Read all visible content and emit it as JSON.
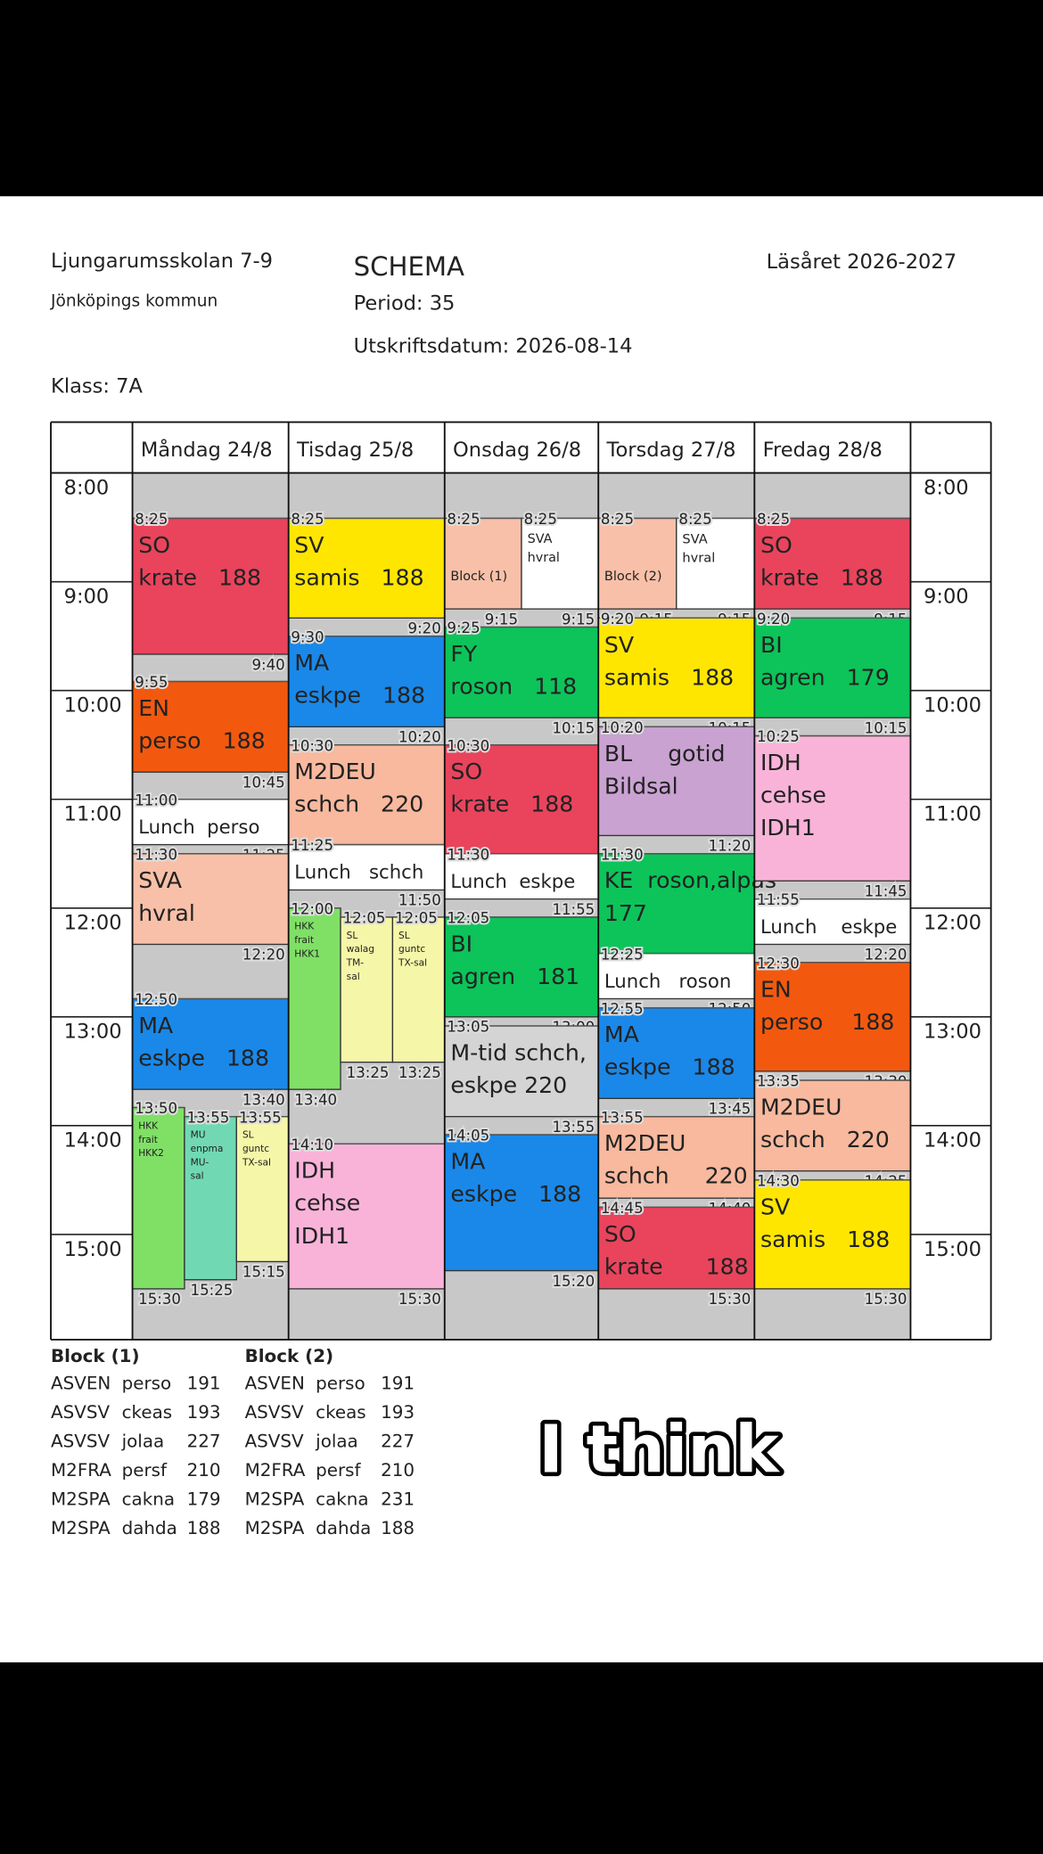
{
  "header": {
    "school": "Ljungarumsskolan 7-9",
    "municipality": "Jönköpings kommun",
    "title": "SCHEMA",
    "period": "Period: 35",
    "print_date": "Utskriftsdatum: 2026-08-14",
    "school_year": "Läsåret 2026-2027",
    "class": "Klass: 7A"
  },
  "hours": [
    "8:00",
    "9:00",
    "10:00",
    "11:00",
    "12:00",
    "13:00",
    "14:00",
    "15:00"
  ],
  "days": [
    {
      "name": "Måndag 24/8",
      "lessons": [
        {
          "start": "8:25",
          "end": "9:40",
          "lines": [
            "SO",
            "krate   188"
          ],
          "color": "#e9445c"
        },
        {
          "start": "9:55",
          "end": "10:45",
          "lines": [
            "EN",
            "perso   188"
          ],
          "color": "#f2590f"
        },
        {
          "start": "11:00",
          "end": "11:25",
          "lines": [
            "Lunch  perso"
          ],
          "color": "#ffffff"
        },
        {
          "start": "11:30",
          "end": "12:20",
          "lines": [
            "SVA",
            "hvral"
          ],
          "color": "#f8c0a8"
        },
        {
          "start": "12:50",
          "end": "13:40",
          "lines": [
            "MA",
            "eskpe   188"
          ],
          "color": "#1a88e8"
        },
        {
          "start": "13:50",
          "end": "15:30",
          "lines": [
            "HKK",
            "frait",
            "HKK2"
          ],
          "color": "#80e066"
        },
        {
          "start": "13:55",
          "end": "15:25",
          "lines": [
            "MU",
            "enpma",
            "MU-",
            "sal"
          ],
          "color": "#70d9b3"
        },
        {
          "start": "13:55",
          "end": "15:15",
          "lines": [
            "SL",
            "guntc",
            "TX-sal"
          ],
          "color": "#f6f6a8"
        }
      ]
    },
    {
      "name": "Tisdag 25/8",
      "lessons": [
        {
          "start": "8:25",
          "end": "9:20",
          "lines": [
            "SV",
            "samis   188"
          ],
          "color": "#ffe600"
        },
        {
          "start": "9:30",
          "end": "10:20",
          "lines": [
            "MA",
            "eskpe   188"
          ],
          "color": "#1a88e8"
        },
        {
          "start": "10:30",
          "end": "11:25",
          "lines": [
            "M2DEU",
            "schch   220"
          ],
          "color": "#f8b99e"
        },
        {
          "start": "11:25",
          "end": "11:50",
          "lines": [
            "Lunch   schch"
          ],
          "color": "#ffffff"
        },
        {
          "start": "12:00",
          "end": "13:40",
          "lines": [
            "HKK",
            "frait",
            "HKK1"
          ],
          "color": "#80e066"
        },
        {
          "start": "12:05",
          "end": "13:25",
          "lines": [
            "SL",
            "walag",
            "TM-",
            "sal"
          ],
          "color": "#f6f6a8"
        },
        {
          "start": "12:05",
          "end": "13:25",
          "lines": [
            "SL",
            "guntc",
            "TX-sal"
          ],
          "color": "#f6f6a8"
        },
        {
          "start": "14:10",
          "end": "15:30",
          "lines": [
            "IDH",
            "cehse",
            "IDH1"
          ],
          "color": "#f9b3d9"
        }
      ]
    },
    {
      "name": "Onsdag 26/8",
      "lessons": [
        {
          "start": "8:25",
          "end": "9:15",
          "lines": [
            "Block (1)"
          ],
          "color": "#f8c0a8"
        },
        {
          "start": "8:25",
          "end": "9:15",
          "lines": [
            "SVA",
            "hvral"
          ],
          "color": "#ffffff"
        },
        {
          "start": "9:25",
          "end": "10:15",
          "lines": [
            "FY",
            "roson   118"
          ],
          "color": "#0cc45a"
        },
        {
          "start": "10:30",
          "end": "11:30",
          "lines": [
            "SO",
            "krate   188"
          ],
          "color": "#e9445c"
        },
        {
          "start": "11:30",
          "end": "11:55",
          "lines": [
            "Lunch  eskpe"
          ],
          "color": "#ffffff"
        },
        {
          "start": "12:05",
          "end": "13:00",
          "lines": [
            "BI",
            "agren   181"
          ],
          "color": "#0cc45a"
        },
        {
          "start": "13:05",
          "end": "13:55",
          "lines": [
            "M-tid schch,",
            "eskpe 220"
          ],
          "color": "#d4d4d4"
        },
        {
          "start": "14:05",
          "end": "15:20",
          "lines": [
            "MA",
            "eskpe   188"
          ],
          "color": "#1a88e8"
        }
      ]
    },
    {
      "name": "Torsdag 27/8",
      "lessons": [
        {
          "start": "8:25",
          "end": "9:15",
          "lines": [
            "Block (2)"
          ],
          "color": "#f8c0a8"
        },
        {
          "start": "8:25",
          "end": "9:15",
          "lines": [
            "SVA",
            "hvral"
          ],
          "color": "#ffffff"
        },
        {
          "start": "9:20",
          "end": "10:15",
          "lines": [
            "SV",
            "samis   188"
          ],
          "color": "#ffe600"
        },
        {
          "start": "10:20",
          "end": "11:20",
          "lines": [
            "BL     gotid",
            "Bildsal"
          ],
          "color": "#c9a2d2"
        },
        {
          "start": "11:30",
          "end": "12:25",
          "lines": [
            "KE  roson,alpas",
            "177"
          ],
          "color": "#0cc45a"
        },
        {
          "start": "12:25",
          "end": "12:50",
          "lines": [
            "Lunch   roson"
          ],
          "color": "#ffffff"
        },
        {
          "start": "12:55",
          "end": "13:45",
          "lines": [
            "MA",
            "eskpe   188"
          ],
          "color": "#1a88e8"
        },
        {
          "start": "13:55",
          "end": "14:40",
          "lines": [
            "M2DEU",
            "schch     220"
          ],
          "color": "#f8b99e"
        },
        {
          "start": "14:45",
          "end": "15:30",
          "lines": [
            "SO",
            "krate      188"
          ],
          "color": "#e9445c"
        }
      ]
    },
    {
      "name": "Fredag 28/8",
      "lessons": [
        {
          "start": "8:25",
          "end": "9:15",
          "lines": [
            "SO",
            "krate   188"
          ],
          "color": "#e9445c"
        },
        {
          "start": "9:20",
          "end": "10:15",
          "lines": [
            "BI",
            "agren   179"
          ],
          "color": "#0cc45a"
        },
        {
          "start": "10:25",
          "end": "11:45",
          "lines": [
            "IDH",
            "cehse",
            "IDH1"
          ],
          "color": "#f9b3d9"
        },
        {
          "start": "11:55",
          "end": "12:20",
          "lines": [
            "Lunch    eskpe"
          ],
          "color": "#ffffff"
        },
        {
          "start": "12:30",
          "end": "13:30",
          "lines": [
            "EN",
            "perso    188"
          ],
          "color": "#f2590f"
        },
        {
          "start": "13:35",
          "end": "14:25",
          "lines": [
            "M2DEU",
            "schch   220"
          ],
          "color": "#f8b99e"
        },
        {
          "start": "14:30",
          "end": "15:30",
          "lines": [
            "SV",
            "samis   188"
          ],
          "color": "#ffe600"
        }
      ]
    }
  ],
  "blocks": [
    {
      "title": "Block (1)",
      "rows": [
        [
          "ASVEN",
          "perso",
          "191"
        ],
        [
          "ASVSV",
          "ckeas",
          "193"
        ],
        [
          "ASVSV",
          "jolaa",
          "227"
        ],
        [
          "M2FRA",
          "persf",
          "210"
        ],
        [
          "M2SPA",
          "cakna",
          "179"
        ],
        [
          "M2SPA",
          "dahda",
          "188"
        ]
      ]
    },
    {
      "title": "Block (2)",
      "rows": [
        [
          "ASVEN",
          "perso",
          "191"
        ],
        [
          "ASVSV",
          "ckeas",
          "193"
        ],
        [
          "ASVSV",
          "jolaa",
          "227"
        ],
        [
          "M2FRA",
          "persf",
          "210"
        ],
        [
          "M2SPA",
          "cakna",
          "231"
        ],
        [
          "M2SPA",
          "dahda",
          "188"
        ]
      ]
    }
  ],
  "caption": "I think"
}
